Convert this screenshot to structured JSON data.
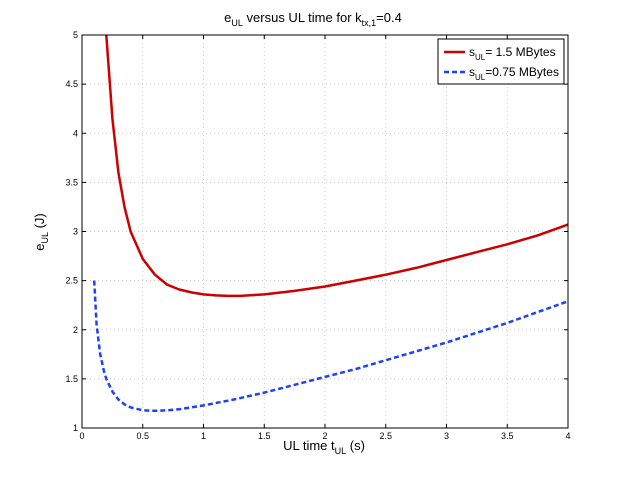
{
  "chart_data": {
    "type": "line",
    "title": {
      "main": "e",
      "main_sub": "UL",
      "mid": " versus UL time for k",
      "mid_sub": "tx,1",
      "tail": "=0.4"
    },
    "xlabel": {
      "main": "UL time t",
      "sub": "UL",
      "tail": " (s)"
    },
    "ylabel": {
      "main": "e",
      "sub": "UL",
      "tail": " (J)"
    },
    "xlim": [
      0,
      4
    ],
    "ylim": [
      1,
      5
    ],
    "xticks": [
      "0",
      "0.5",
      "1",
      "1.5",
      "2",
      "2.5",
      "3",
      "3.5",
      "4"
    ],
    "yticks": [
      "1",
      "1.5",
      "2",
      "2.5",
      "3",
      "3.5",
      "4",
      "4.5",
      "5"
    ],
    "grid": true,
    "legend_position": "top-right",
    "series": [
      {
        "name": {
          "main": "s",
          "sub": "UL",
          "tail": "= 1.5 MBytes"
        },
        "color": "#cc0000",
        "style": "solid",
        "x": [
          0.2,
          0.25,
          0.3,
          0.35,
          0.4,
          0.5,
          0.6,
          0.7,
          0.8,
          0.9,
          1.0,
          1.1,
          1.2,
          1.3,
          1.5,
          1.75,
          2.0,
          2.25,
          2.5,
          2.75,
          3.0,
          3.25,
          3.5,
          3.75,
          4.0
        ],
        "y": [
          5.0,
          4.15,
          3.6,
          3.25,
          3.0,
          2.72,
          2.56,
          2.46,
          2.41,
          2.38,
          2.36,
          2.35,
          2.345,
          2.345,
          2.36,
          2.395,
          2.44,
          2.5,
          2.56,
          2.63,
          2.71,
          2.79,
          2.87,
          2.96,
          3.07
        ]
      },
      {
        "name": {
          "main": "s",
          "sub": "UL",
          "tail": "=0.75 MBytes"
        },
        "color": "#1f3fff",
        "style": "dashed",
        "x": [
          0.1,
          0.12,
          0.15,
          0.18,
          0.2,
          0.25,
          0.3,
          0.35,
          0.4,
          0.5,
          0.6,
          0.7,
          0.8,
          0.9,
          1.0,
          1.25,
          1.5,
          1.75,
          2.0,
          2.25,
          2.5,
          2.75,
          3.0,
          3.25,
          3.5,
          3.75,
          4.0
        ],
        "y": [
          2.5,
          2.05,
          1.75,
          1.58,
          1.5,
          1.37,
          1.29,
          1.24,
          1.21,
          1.18,
          1.175,
          1.18,
          1.19,
          1.21,
          1.23,
          1.29,
          1.36,
          1.44,
          1.52,
          1.6,
          1.69,
          1.78,
          1.87,
          1.97,
          2.07,
          2.18,
          2.29
        ]
      }
    ]
  }
}
